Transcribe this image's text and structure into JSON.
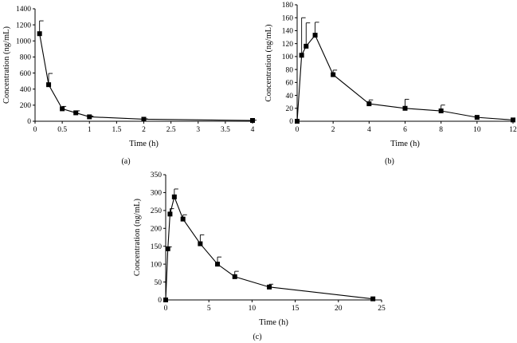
{
  "chart_data": [
    {
      "type": "line",
      "panel_label": "(a)",
      "xlabel": "Time (h)",
      "ylabel": "Concentration (ng/mL)",
      "xlim": [
        0,
        4
      ],
      "ylim": [
        0,
        1400
      ],
      "xticks": [
        0,
        0.5,
        1,
        1.5,
        2,
        2.5,
        3,
        3.5,
        4
      ],
      "xtick_labels": [
        "0",
        "0.5",
        "1",
        "1.5",
        "2",
        "2.5",
        "3",
        "3.5",
        "4"
      ],
      "yticks": [
        0,
        200,
        400,
        600,
        800,
        1000,
        1200,
        1400
      ],
      "ytick_labels": [
        "0",
        "200",
        "400",
        "600",
        "800",
        "1000",
        "1200",
        "1400"
      ],
      "marker": "square",
      "error_bars": "upper",
      "points": [
        {
          "x": 0.083,
          "y": 1090,
          "err": 160
        },
        {
          "x": 0.25,
          "y": 455,
          "err": 140
        },
        {
          "x": 0.5,
          "y": 155,
          "err": 30
        },
        {
          "x": 0.75,
          "y": 105,
          "err": 25
        },
        {
          "x": 1,
          "y": 55,
          "err": 10
        },
        {
          "x": 2,
          "y": 25,
          "err": 5
        },
        {
          "x": 4,
          "y": 10,
          "err": 3
        }
      ]
    },
    {
      "type": "line",
      "panel_label": "(b)",
      "xlabel": "Time (h)",
      "ylabel": "Concentration (ng/mL)",
      "xlim": [
        0,
        12
      ],
      "ylim": [
        0,
        180
      ],
      "xticks": [
        0,
        2,
        4,
        6,
        8,
        10,
        12
      ],
      "xtick_labels": [
        "0",
        "2",
        "4",
        "6",
        "8",
        "10",
        "12"
      ],
      "yticks": [
        0,
        20,
        40,
        60,
        80,
        100,
        120,
        140,
        160,
        180
      ],
      "ytick_labels": [
        "0",
        "20",
        "40",
        "60",
        "80",
        "100",
        "120",
        "140",
        "160",
        "180"
      ],
      "marker": "square",
      "error_bars": "upper",
      "points": [
        {
          "x": 0,
          "y": 0,
          "err": 0
        },
        {
          "x": 0.25,
          "y": 102,
          "err": 58
        },
        {
          "x": 0.5,
          "y": 116,
          "err": 36
        },
        {
          "x": 1,
          "y": 133,
          "err": 20
        },
        {
          "x": 2,
          "y": 72,
          "err": 7
        },
        {
          "x": 4,
          "y": 27,
          "err": 6
        },
        {
          "x": 6,
          "y": 20,
          "err": 14
        },
        {
          "x": 8,
          "y": 16,
          "err": 9
        },
        {
          "x": 10,
          "y": 6,
          "err": 0
        },
        {
          "x": 12,
          "y": 2,
          "err": 0
        }
      ]
    },
    {
      "type": "line",
      "panel_label": "(c)",
      "xlabel": "Time (h)",
      "ylabel": "Concentration (ng/mL)",
      "xlim": [
        0,
        25
      ],
      "ylim": [
        0,
        350
      ],
      "xticks": [
        0,
        5,
        10,
        15,
        20,
        25
      ],
      "xtick_labels": [
        "0",
        "5",
        "10",
        "15",
        "20",
        "25"
      ],
      "yticks": [
        0,
        50,
        100,
        150,
        200,
        250,
        300,
        350
      ],
      "ytick_labels": [
        "0",
        "50",
        "100",
        "150",
        "200",
        "250",
        "300",
        "350"
      ],
      "marker": "square",
      "error_bars": "upper",
      "points": [
        {
          "x": 0,
          "y": 0,
          "err": 0
        },
        {
          "x": 0.25,
          "y": 143,
          "err": 5
        },
        {
          "x": 0.5,
          "y": 240,
          "err": 15
        },
        {
          "x": 1,
          "y": 288,
          "err": 22
        },
        {
          "x": 2,
          "y": 226,
          "err": 12
        },
        {
          "x": 4,
          "y": 157,
          "err": 25
        },
        {
          "x": 6,
          "y": 100,
          "err": 20
        },
        {
          "x": 8,
          "y": 65,
          "err": 15
        },
        {
          "x": 12,
          "y": 36,
          "err": 8
        },
        {
          "x": 24,
          "y": 3,
          "err": 0
        }
      ]
    }
  ]
}
